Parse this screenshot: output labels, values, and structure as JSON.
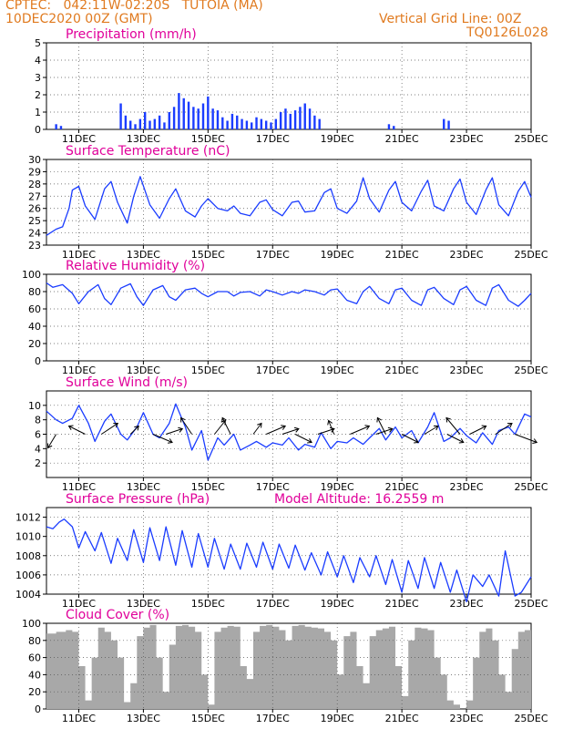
{
  "header": {
    "line1": "CPTEC:   042:11W-02:20S   TUTOIA (MA)",
    "line2": "10DEC2020 00Z (GMT)",
    "grid_note": "Vertical Grid Line: 00Z",
    "code": "TQ0126L028"
  },
  "colors": {
    "header": "#e07a1f",
    "panel_title": "#e0009a",
    "series": "#1a3cff",
    "cloud": "#a8a8a8",
    "arrows": "#000000"
  },
  "model_altitude_label": "Model Altitude: 16.2559 m",
  "chart_data": [
    {
      "type": "bar",
      "title": "Precipitation (mm/h)",
      "ylim": [
        0,
        5
      ],
      "yticks": [
        0,
        1,
        2,
        3,
        4,
        5
      ],
      "xlim": [
        0,
        15
      ],
      "xticks": [
        1,
        3,
        5,
        7,
        9,
        11,
        13,
        15
      ],
      "xtick_labels": [
        "11DEC",
        "13DEC",
        "15DEC",
        "17DEC",
        "19DEC",
        "21DEC",
        "23DEC",
        "25DEC"
      ],
      "grid": "dotted",
      "series": [
        {
          "x": [
            0.3,
            0.45,
            2.3,
            2.45,
            2.6,
            2.75,
            2.9,
            3.05,
            3.2,
            3.35,
            3.5,
            3.65,
            3.8,
            3.95,
            4.1,
            4.25,
            4.4,
            4.55,
            4.7,
            4.85,
            5.0,
            5.15,
            5.3,
            5.45,
            5.6,
            5.75,
            5.9,
            6.05,
            6.2,
            6.35,
            6.5,
            6.65,
            6.8,
            6.95,
            7.1,
            7.25,
            7.4,
            7.55,
            7.7,
            7.85,
            8.0,
            8.15,
            8.3,
            8.45,
            10.6,
            10.75,
            12.3,
            12.45
          ],
          "values": [
            0.3,
            0.2,
            1.5,
            0.8,
            0.5,
            0.3,
            0.6,
            1.0,
            0.5,
            0.6,
            0.8,
            0.4,
            1.0,
            1.3,
            2.1,
            1.8,
            1.6,
            1.3,
            1.2,
            1.5,
            1.9,
            1.2,
            1.1,
            0.7,
            0.5,
            0.9,
            0.8,
            0.6,
            0.5,
            0.4,
            0.7,
            0.6,
            0.5,
            0.4,
            0.6,
            1.0,
            1.2,
            0.9,
            1.1,
            1.3,
            1.5,
            1.2,
            0.8,
            0.6,
            0.3,
            0.2,
            0.6,
            0.5
          ]
        }
      ]
    },
    {
      "type": "line",
      "title": "Surface Temperature (nC)",
      "ylim": [
        23,
        30
      ],
      "yticks": [
        23,
        24,
        25,
        26,
        27,
        28,
        29,
        30
      ],
      "xlim": [
        0,
        15
      ],
      "xticks": [
        1,
        3,
        5,
        7,
        9,
        11,
        13,
        15
      ],
      "xtick_labels": [
        "11DEC",
        "13DEC",
        "15DEC",
        "17DEC",
        "19DEC",
        "21DEC",
        "23DEC",
        "25DEC"
      ],
      "grid": "dotted",
      "series": [
        {
          "x": [
            0.0,
            0.3,
            0.5,
            0.7,
            0.8,
            1.0,
            1.2,
            1.5,
            1.8,
            2.0,
            2.2,
            2.5,
            2.7,
            2.9,
            3.2,
            3.5,
            3.8,
            4.0,
            4.3,
            4.6,
            4.8,
            5.0,
            5.3,
            5.6,
            5.8,
            6.0,
            6.3,
            6.6,
            6.8,
            7.0,
            7.3,
            7.6,
            7.8,
            8.0,
            8.3,
            8.6,
            8.8,
            9.0,
            9.3,
            9.6,
            9.8,
            10.0,
            10.3,
            10.6,
            10.8,
            11.0,
            11.3,
            11.6,
            11.8,
            12.0,
            12.3,
            12.6,
            12.8,
            13.0,
            13.3,
            13.6,
            13.8,
            14.0,
            14.3,
            14.6,
            14.8,
            15.0
          ],
          "values": [
            23.8,
            24.3,
            24.5,
            26.0,
            27.5,
            27.8,
            26.2,
            25.1,
            27.6,
            28.2,
            26.5,
            24.8,
            27.0,
            28.6,
            26.3,
            25.2,
            26.8,
            27.6,
            25.8,
            25.3,
            26.2,
            26.8,
            26.0,
            25.8,
            26.2,
            25.6,
            25.4,
            26.5,
            26.7,
            25.9,
            25.4,
            26.5,
            26.6,
            25.7,
            25.8,
            27.3,
            27.6,
            26.0,
            25.6,
            26.6,
            28.5,
            26.8,
            25.7,
            27.5,
            28.2,
            26.5,
            25.8,
            27.4,
            28.3,
            26.2,
            25.8,
            27.6,
            28.4,
            26.5,
            25.5,
            27.5,
            28.5,
            26.3,
            25.4,
            27.4,
            28.2,
            26.9
          ]
        }
      ]
    },
    {
      "type": "line",
      "title": "Relative Humidity (%)",
      "ylim": [
        0,
        100
      ],
      "yticks": [
        0,
        20,
        40,
        60,
        80,
        100
      ],
      "xlim": [
        0,
        15
      ],
      "xticks": [
        1,
        3,
        5,
        7,
        9,
        11,
        13,
        15
      ],
      "xtick_labels": [
        "11DEC",
        "13DEC",
        "15DEC",
        "17DEC",
        "19DEC",
        "21DEC",
        "23DEC",
        "25DEC"
      ],
      "grid": "dotted",
      "series": [
        {
          "x": [
            0.0,
            0.2,
            0.5,
            0.8,
            1.0,
            1.3,
            1.6,
            1.8,
            2.0,
            2.3,
            2.6,
            2.8,
            3.0,
            3.3,
            3.6,
            3.8,
            4.0,
            4.3,
            4.6,
            4.8,
            5.0,
            5.3,
            5.6,
            5.8,
            6.0,
            6.3,
            6.6,
            6.8,
            7.0,
            7.3,
            7.6,
            7.8,
            8.0,
            8.3,
            8.6,
            8.8,
            9.0,
            9.3,
            9.6,
            9.8,
            10.0,
            10.3,
            10.6,
            10.8,
            11.0,
            11.3,
            11.6,
            11.8,
            12.0,
            12.3,
            12.6,
            12.8,
            13.0,
            13.3,
            13.6,
            13.8,
            14.0,
            14.3,
            14.6,
            14.8,
            15.0
          ],
          "values": [
            90,
            85,
            88,
            78,
            66,
            80,
            88,
            72,
            65,
            84,
            89,
            74,
            64,
            82,
            87,
            74,
            70,
            82,
            84,
            78,
            74,
            80,
            80,
            75,
            79,
            80,
            75,
            82,
            80,
            76,
            80,
            78,
            82,
            80,
            76,
            82,
            83,
            70,
            66,
            80,
            86,
            72,
            66,
            82,
            84,
            70,
            64,
            82,
            85,
            72,
            65,
            82,
            86,
            70,
            64,
            84,
            88,
            70,
            63,
            70,
            78
          ]
        }
      ]
    },
    {
      "type": "line",
      "title": "Surface Wind (m/s)",
      "ylim": [
        0,
        12
      ],
      "yticks": [
        2,
        4,
        6,
        8,
        10
      ],
      "xlim": [
        0,
        15
      ],
      "xticks": [
        1,
        3,
        5,
        7,
        9,
        11,
        13,
        15
      ],
      "xtick_labels": [
        "11DEC",
        "13DEC",
        "15DEC",
        "17DEC",
        "19DEC",
        "21DEC",
        "23DEC",
        "25DEC"
      ],
      "grid": "dotted",
      "series": [
        {
          "x": [
            0.0,
            0.3,
            0.5,
            0.8,
            1.0,
            1.3,
            1.5,
            1.8,
            2.0,
            2.3,
            2.5,
            2.8,
            3.0,
            3.3,
            3.5,
            3.8,
            4.0,
            4.3,
            4.5,
            4.8,
            5.0,
            5.3,
            5.5,
            5.8,
            6.0,
            6.3,
            6.5,
            6.8,
            7.0,
            7.3,
            7.5,
            7.8,
            8.0,
            8.3,
            8.5,
            8.8,
            9.0,
            9.3,
            9.5,
            9.8,
            10.0,
            10.3,
            10.5,
            10.8,
            11.0,
            11.3,
            11.5,
            11.8,
            12.0,
            12.3,
            12.5,
            12.8,
            13.0,
            13.3,
            13.5,
            13.8,
            14.0,
            14.3,
            14.5,
            14.8,
            15.0
          ],
          "values": [
            9.2,
            8.0,
            7.5,
            8.2,
            10.0,
            7.5,
            5.0,
            7.8,
            8.8,
            6.0,
            5.2,
            7.0,
            9.0,
            6.0,
            5.5,
            7.5,
            10.2,
            7.0,
            3.8,
            6.5,
            2.4,
            5.5,
            4.5,
            6.0,
            3.8,
            4.5,
            5.0,
            4.2,
            4.8,
            4.5,
            5.5,
            3.8,
            4.6,
            4.2,
            6.2,
            4.0,
            5.0,
            4.8,
            5.5,
            4.6,
            5.5,
            6.8,
            5.2,
            7.0,
            5.5,
            6.5,
            4.8,
            7.0,
            9.0,
            5.0,
            5.5,
            6.8,
            5.8,
            4.8,
            6.2,
            4.6,
            6.5,
            7.0,
            6.0,
            8.8,
            8.4
          ]
        }
      ],
      "wind_vectors": [
        {
          "x": 0.3,
          "dx": -0.3,
          "dy": -0.5
        },
        {
          "x": 1.2,
          "dx": -0.6,
          "dy": 0.3
        },
        {
          "x": 1.7,
          "dx": 0.6,
          "dy": 0.4
        },
        {
          "x": 2.6,
          "dx": 0.3,
          "dy": 0.3
        },
        {
          "x": 3.3,
          "dx": 0.7,
          "dy": -0.3
        },
        {
          "x": 3.7,
          "dx": 0.6,
          "dy": 0.2
        },
        {
          "x": 4.5,
          "dx": -0.4,
          "dy": 0.6
        },
        {
          "x": 5.2,
          "dx": 0.4,
          "dy": 0.5
        },
        {
          "x": 5.7,
          "dx": -0.3,
          "dy": 0.6
        },
        {
          "x": 6.4,
          "dx": 0.3,
          "dy": 0.4
        },
        {
          "x": 6.8,
          "dx": 0.7,
          "dy": 0.3
        },
        {
          "x": 7.3,
          "dx": 0.6,
          "dy": 0.2
        },
        {
          "x": 7.7,
          "dx": 0.6,
          "dy": -0.3
        },
        {
          "x": 8.4,
          "dx": 0.6,
          "dy": 0.2
        },
        {
          "x": 8.9,
          "dx": -0.2,
          "dy": 0.5
        },
        {
          "x": 9.4,
          "dx": 0.7,
          "dy": 0.3
        },
        {
          "x": 10.2,
          "dx": 0.6,
          "dy": 0.2
        },
        {
          "x": 10.5,
          "dx": -0.3,
          "dy": 0.6
        },
        {
          "x": 11.0,
          "dx": 0.6,
          "dy": -0.3
        },
        {
          "x": 11.7,
          "dx": 0.5,
          "dy": 0.3
        },
        {
          "x": 12.4,
          "dx": 0.6,
          "dy": -0.3
        },
        {
          "x": 12.8,
          "dx": -0.5,
          "dy": 0.6
        },
        {
          "x": 13.1,
          "dx": 0.6,
          "dy": 0.3
        },
        {
          "x": 13.9,
          "dx": 0.6,
          "dy": 0.4
        },
        {
          "x": 14.5,
          "dx": 0.8,
          "dy": -0.3
        }
      ]
    },
    {
      "type": "line",
      "title": "Surface Pressure (hPa)",
      "ylim": [
        1004,
        1013
      ],
      "yticks": [
        1004,
        1006,
        1008,
        1010,
        1012
      ],
      "xlim": [
        0,
        15
      ],
      "xticks": [
        1,
        3,
        5,
        7,
        9,
        11,
        13,
        15
      ],
      "xtick_labels": [
        "11DEC",
        "13DEC",
        "15DEC",
        "17DEC",
        "19DEC",
        "21DEC",
        "23DEC",
        "25DEC"
      ],
      "grid": "dotted",
      "series": [
        {
          "x": [
            0.0,
            0.2,
            0.4,
            0.55,
            0.8,
            1.0,
            1.2,
            1.5,
            1.7,
            2.0,
            2.2,
            2.5,
            2.7,
            3.0,
            3.2,
            3.5,
            3.7,
            4.0,
            4.2,
            4.5,
            4.7,
            5.0,
            5.2,
            5.5,
            5.7,
            6.0,
            6.2,
            6.5,
            6.7,
            7.0,
            7.2,
            7.5,
            7.7,
            8.0,
            8.2,
            8.5,
            8.7,
            9.0,
            9.2,
            9.5,
            9.7,
            10.0,
            10.2,
            10.5,
            10.7,
            11.0,
            11.2,
            11.5,
            11.7,
            12.0,
            12.2,
            12.5,
            12.7,
            13.0,
            13.2,
            13.5,
            13.7,
            14.0,
            14.2,
            14.5,
            14.7,
            15.0
          ],
          "values": [
            1011.0,
            1010.8,
            1011.5,
            1011.8,
            1011.0,
            1008.8,
            1010.5,
            1008.5,
            1010.4,
            1007.2,
            1009.8,
            1007.5,
            1010.7,
            1007.3,
            1010.9,
            1007.5,
            1011.0,
            1007.0,
            1010.6,
            1006.8,
            1010.3,
            1006.8,
            1009.8,
            1006.6,
            1009.2,
            1006.6,
            1009.3,
            1006.8,
            1009.4,
            1006.6,
            1009.2,
            1006.7,
            1009.1,
            1006.5,
            1008.3,
            1006.0,
            1008.4,
            1005.8,
            1008.0,
            1005.2,
            1007.8,
            1005.8,
            1008.0,
            1005.0,
            1007.6,
            1004.2,
            1007.5,
            1004.6,
            1007.8,
            1004.6,
            1007.3,
            1004.2,
            1006.5,
            1003.2,
            1006.0,
            1004.8,
            1006.0,
            1003.8,
            1008.5,
            1003.8,
            1004.2,
            1005.8
          ]
        }
      ]
    },
    {
      "type": "area",
      "title": "Cloud Cover (%)",
      "ylim": [
        0,
        100
      ],
      "yticks": [
        0,
        20,
        40,
        60,
        80,
        100
      ],
      "xlim": [
        0,
        15
      ],
      "xticks": [
        1,
        3,
        5,
        7,
        9,
        11,
        13,
        15
      ],
      "xtick_labels": [
        "11DEC",
        "13DEC",
        "15DEC",
        "17DEC",
        "19DEC",
        "21DEC",
        "23DEC",
        "25DEC"
      ],
      "grid": "dotted",
      "series": [
        {
          "x": [
            0.0,
            0.3,
            0.6,
            0.8,
            1.0,
            1.2,
            1.4,
            1.6,
            1.8,
            2.0,
            2.2,
            2.4,
            2.6,
            2.8,
            3.0,
            3.2,
            3.4,
            3.6,
            3.8,
            4.0,
            4.2,
            4.4,
            4.6,
            4.8,
            5.0,
            5.2,
            5.4,
            5.6,
            5.8,
            6.0,
            6.2,
            6.4,
            6.6,
            6.8,
            7.0,
            7.2,
            7.4,
            7.6,
            7.8,
            8.0,
            8.2,
            8.4,
            8.6,
            8.8,
            9.0,
            9.2,
            9.4,
            9.6,
            9.8,
            10.0,
            10.2,
            10.4,
            10.6,
            10.8,
            11.0,
            11.2,
            11.4,
            11.6,
            11.8,
            12.0,
            12.2,
            12.4,
            12.6,
            12.8,
            13.0,
            13.2,
            13.4,
            13.6,
            13.8,
            14.0,
            14.2,
            14.4,
            14.6,
            14.8,
            15.0
          ],
          "values": [
            88,
            90,
            92,
            90,
            50,
            10,
            60,
            95,
            90,
            80,
            60,
            8,
            30,
            85,
            95,
            98,
            60,
            20,
            75,
            97,
            98,
            96,
            90,
            40,
            5,
            90,
            95,
            97,
            96,
            50,
            35,
            90,
            97,
            98,
            96,
            92,
            80,
            97,
            98,
            96,
            95,
            94,
            90,
            80,
            40,
            85,
            90,
            50,
            30,
            85,
            92,
            94,
            96,
            50,
            15,
            80,
            95,
            94,
            92,
            60,
            40,
            10,
            5,
            0,
            10,
            60,
            90,
            94,
            80,
            40,
            20,
            70,
            90,
            92,
            85
          ]
        }
      ]
    }
  ]
}
